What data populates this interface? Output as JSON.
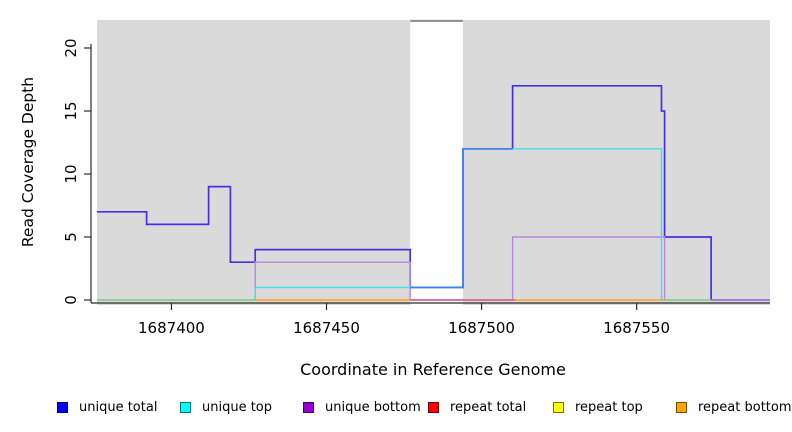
{
  "chart_data": {
    "type": "line",
    "subtype": "step-coverage",
    "xlabel": "Coordinate in Reference Genome",
    "ylabel": "Read Coverage Depth",
    "xlim": [
      1687376,
      1687593
    ],
    "ylim": [
      0,
      22.2
    ],
    "x_ticks": [
      "1687400",
      "1687450",
      "1687500",
      "1687550"
    ],
    "x_tick_values": [
      1687400,
      1687450,
      1687500,
      1687550
    ],
    "y_ticks": [
      "0",
      "5",
      "10",
      "15",
      "20"
    ],
    "y_tick_values": [
      0,
      5,
      10,
      15,
      20
    ],
    "grid": false,
    "legend_position": "bottom",
    "series": [
      {
        "name": "unique total",
        "color": "#0000FF",
        "segments": [
          {
            "from": 1687376,
            "to": 1687392,
            "value": 7
          },
          {
            "from": 1687392,
            "to": 1687412,
            "value": 6
          },
          {
            "from": 1687412,
            "to": 1687419,
            "value": 9
          },
          {
            "from": 1687419,
            "to": 1687427,
            "value": 3
          },
          {
            "from": 1687427,
            "to": 1687477,
            "value": 4
          },
          {
            "from": 1687477,
            "to": 1687494,
            "value": 1
          },
          {
            "from": 1687494,
            "to": 1687510,
            "value": 12
          },
          {
            "from": 1687510,
            "to": 1687558,
            "value": 17
          },
          {
            "from": 1687558,
            "to": 1687559,
            "value": 15
          },
          {
            "from": 1687559,
            "to": 1687574,
            "value": 5
          },
          {
            "from": 1687574,
            "to": 1687593,
            "value": 0
          }
        ]
      },
      {
        "name": "unique top",
        "color": "#00FFFF",
        "segments": [
          {
            "from": 1687376,
            "to": 1687427,
            "value": 0
          },
          {
            "from": 1687427,
            "to": 1687494,
            "value": 1
          },
          {
            "from": 1687494,
            "to": 1687558,
            "value": 12
          },
          {
            "from": 1687558,
            "to": 1687593,
            "value": 0
          }
        ]
      },
      {
        "name": "unique bottom",
        "color": "#9400D3",
        "segments": [
          {
            "from": 1687376,
            "to": 1687427,
            "value": 0
          },
          {
            "from": 1687427,
            "to": 1687477,
            "value": 3
          },
          {
            "from": 1687477,
            "to": 1687510,
            "value": 0
          },
          {
            "from": 1687510,
            "to": 1687559,
            "value": 5
          },
          {
            "from": 1687559,
            "to": 1687593,
            "value": 0
          }
        ]
      },
      {
        "name": "repeat total",
        "color": "#FF0000",
        "segments": [
          {
            "from": 1687376,
            "to": 1687593,
            "value": 0
          }
        ]
      },
      {
        "name": "repeat top",
        "color": "#FFFF00",
        "segments": [
          {
            "from": 1687376,
            "to": 1687593,
            "value": 0
          }
        ]
      },
      {
        "name": "repeat bottom",
        "color": "#FFA500",
        "segments": [
          {
            "from": 1687376,
            "to": 1687593,
            "value": 0
          }
        ]
      }
    ],
    "render": {
      "plot_bg": "#DADADA",
      "repeat_region": {
        "from": 1687477,
        "to": 1687494,
        "fill": "#FFFFFF",
        "cap_color": "#8C8C8C"
      },
      "lines": [
        {
          "name": "unique-total-line",
          "color": "#4630E6",
          "width": 1.7,
          "points": [
            [
              1687376,
              7
            ],
            [
              1687392,
              7
            ],
            [
              1687392,
              6
            ],
            [
              1687412,
              6
            ],
            [
              1687412,
              9
            ],
            [
              1687419,
              9
            ],
            [
              1687419,
              3
            ],
            [
              1687427,
              3
            ],
            [
              1687427,
              4
            ],
            [
              1687477,
              4
            ],
            [
              1687477,
              1
            ],
            [
              1687494,
              1
            ],
            [
              1687494,
              12
            ],
            [
              1687510,
              12
            ],
            [
              1687510,
              17
            ],
            [
              1687558,
              17
            ],
            [
              1687558,
              15
            ],
            [
              1687559,
              15
            ],
            [
              1687559,
              5
            ],
            [
              1687574,
              5
            ],
            [
              1687574,
              0
            ],
            [
              1687593,
              0
            ]
          ]
        },
        {
          "name": "unique-bottom-line",
          "color": "#BA86DC",
          "width": 1.4,
          "points": [
            [
              1687427,
              0
            ],
            [
              1687427,
              3
            ],
            [
              1687477,
              3
            ],
            [
              1687477,
              0
            ],
            [
              1687510,
              0
            ],
            [
              1687510,
              5
            ],
            [
              1687559,
              5
            ],
            [
              1687559,
              0
            ]
          ]
        },
        {
          "name": "unique-top-line",
          "color": "#3FE0EE",
          "width": 1.4,
          "points": [
            [
              1687427,
              0
            ],
            [
              1687427,
              1
            ],
            [
              1687494,
              1
            ],
            [
              1687494,
              12
            ],
            [
              1687558,
              12
            ],
            [
              1687558,
              0
            ]
          ]
        },
        {
          "name": "total-top-overlap-line",
          "color": "#3E82F0",
          "width": 1.7,
          "points": [
            [
              1687477,
              1
            ],
            [
              1687494,
              1
            ],
            [
              1687494,
              12
            ],
            [
              1687510,
              12
            ]
          ]
        }
      ],
      "zero_line_segments": [
        {
          "from": 1687376,
          "to": 1687427,
          "color": "#7FC97F"
        },
        {
          "from": 1687427,
          "to": 1687477,
          "color": "#FFA11C"
        },
        {
          "from": 1687477,
          "to": 1687511,
          "color": "#D4627E"
        },
        {
          "from": 1687511,
          "to": 1687559,
          "color": "#FFA11C"
        },
        {
          "from": 1687559,
          "to": 1687574,
          "color": "#7FC97F"
        },
        {
          "from": 1687574,
          "to": 1687593,
          "color": "#BA86DC"
        }
      ]
    }
  },
  "legend": {
    "items": [
      {
        "label": "unique total",
        "color": "#0000FF"
      },
      {
        "label": "unique top",
        "color": "#00FFFF"
      },
      {
        "label": "unique bottom",
        "color": "#9400D3"
      },
      {
        "label": "repeat total",
        "color": "#FF0000"
      },
      {
        "label": "repeat top",
        "color": "#FFFF00"
      },
      {
        "label": "repeat bottom",
        "color": "#FFA500"
      }
    ]
  }
}
